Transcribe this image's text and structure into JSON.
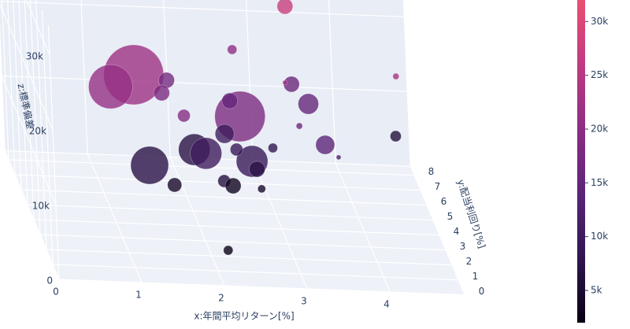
{
  "chart_data": {
    "type": "scatter3d",
    "x_title": "x:年間平均リターン[%]",
    "y_title": "y:配当利回り[%]",
    "z_title": "z:標準偏差",
    "x": [
      1.21,
      0.9,
      3.25,
      2.44,
      2.62,
      1.76,
      1.6,
      1.72,
      2.5,
      3.31,
      3.45,
      3.48,
      4.39,
      4.67,
      1.46,
      2.09,
      2.11,
      2.44,
      2.67,
      2.76,
      1.77,
      2.33,
      2.52,
      2.82,
      2.16,
      3.03,
      3.19,
      3.65,
      3.03,
      2.54
    ],
    "y": [
      2.94,
      2.58,
      5.45,
      2.41,
      5.92,
      5.19,
      3.81,
      1.81,
      4.97,
      5.75,
      4.96,
      2.73,
      3.0,
      7.56,
      4.44,
      5.62,
      3.87,
      5.25,
      3.96,
      4.45,
      4.69,
      4.07,
      5.29,
      4.65,
      1.4,
      5.43,
      2.93,
      2.93,
      2.8,
      4.72
    ],
    "z": [
      22000,
      21000,
      27000,
      18000,
      20000,
      17000,
      18000,
      19000,
      15000,
      16000,
      15000,
      14000,
      23000,
      6000,
      7000,
      7000,
      10000,
      10000,
      9000,
      7000,
      4000,
      6000,
      3000,
      4000,
      2000,
      8000,
      16000,
      12000,
      22000,
      9000
    ],
    "sizes": [
      76,
      56,
      20,
      64,
      12,
      20,
      20,
      16,
      20,
      20,
      26,
      24,
      8,
      14,
      48,
      40,
      40,
      24,
      40,
      20,
      18,
      16,
      20,
      10,
      12,
      12,
      8,
      6,
      6,
      16
    ],
    "xlim": [
      0,
      4.9
    ],
    "ylim": [
      0,
      8.6
    ],
    "zlim": [
      0,
      34000
    ],
    "xticks": [
      0,
      1,
      2,
      3,
      4
    ],
    "yticks": [
      0,
      1,
      2,
      3,
      4,
      5,
      6,
      7,
      8
    ],
    "zticks": [
      0,
      {
        "value": 10000,
        "label": "10k"
      },
      {
        "value": 20000,
        "label": "20k"
      },
      {
        "value": 30000,
        "label": "30k"
      }
    ],
    "colorlim": [
      2000,
      32000
    ],
    "colorscale": [
      "#0a0014",
      "#2f1650",
      "#5c2478",
      "#8c2d85",
      "#c03a82",
      "#ea4f72"
    ],
    "colorbar_ticks": [
      {
        "value": 5000,
        "label": "5k"
      },
      {
        "value": 10000,
        "label": "10k"
      },
      {
        "value": 15000,
        "label": "15k"
      },
      {
        "value": 20000,
        "label": "20k"
      },
      {
        "value": 25000,
        "label": "25k"
      },
      {
        "value": 30000,
        "label": "30k"
      }
    ],
    "grid": true
  }
}
